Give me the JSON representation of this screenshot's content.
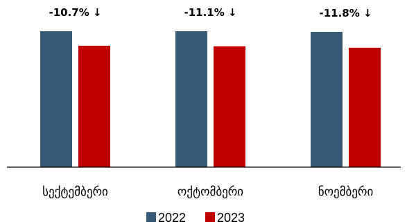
{
  "chart_data": {
    "type": "bar",
    "categories": [
      "სექტემბერი",
      "ოქტომბერი",
      "ნოემბერი"
    ],
    "series": [
      {
        "name": "2022",
        "values": [
          100,
          100,
          99.5
        ]
      },
      {
        "name": "2023",
        "values": [
          89.3,
          88.9,
          87.8
        ]
      }
    ],
    "annotations": [
      "-10.7% ↓",
      "-11.1% ↓",
      "-11.8% ↓"
    ],
    "colors": [
      "#375a76",
      "#c00000"
    ],
    "legend": "bottom",
    "grid": false
  }
}
